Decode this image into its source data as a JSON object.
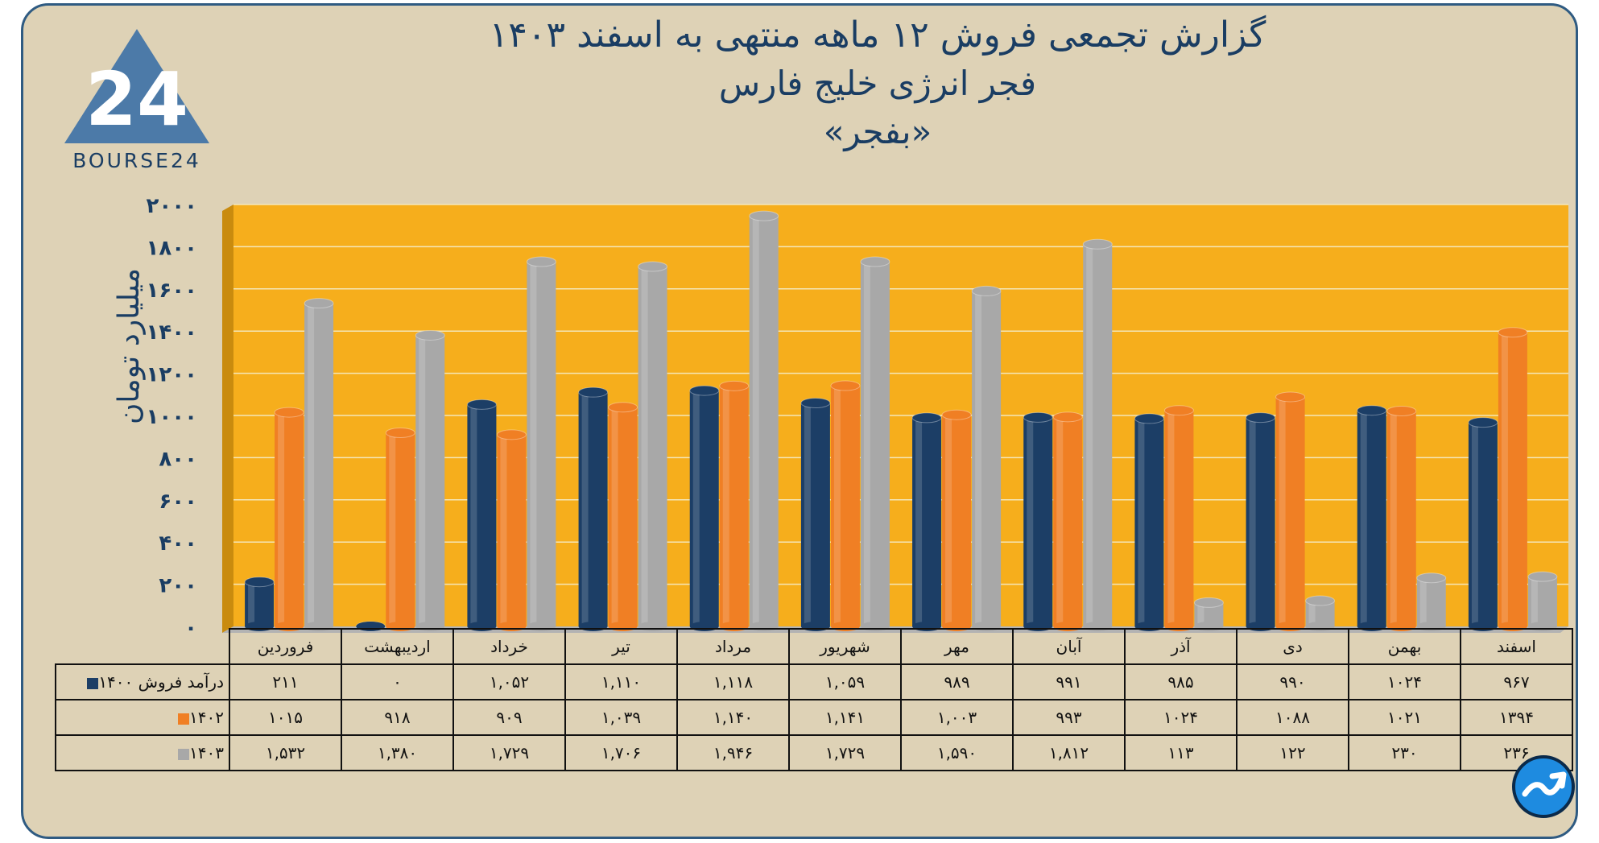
{
  "header": {
    "title_line1": "گزارش تجمعی فروش ۱۲ ماهه منتهی به اسفند ۱۴۰۳",
    "title_line2": "فجر انرژی خلیج فارس",
    "title_line3": "«بفجر»"
  },
  "logo": {
    "text": "BOURSE24",
    "mark": "24"
  },
  "badge": {
    "icon": "trend-up-arrow-icon"
  },
  "colors": {
    "background": "#ded2b6",
    "plot_area": "#f6ae1c",
    "series_1400": "#1c3e66",
    "series_1402": "#f07f24",
    "series_1403": "#a8a8a8",
    "text": "#1a3d63"
  },
  "chart_data": {
    "type": "bar",
    "ylabel": "میلیارد تومان",
    "ylim": [
      0,
      2000
    ],
    "yticks": [
      "۰",
      "۲۰۰",
      "۴۰۰",
      "۶۰۰",
      "۸۰۰",
      "۱۰۰۰",
      "۱۲۰۰",
      "۱۴۰۰",
      "۱۶۰۰",
      "۱۸۰۰",
      "۲۰۰۰"
    ],
    "categories": [
      "فروردین",
      "اردیبهشت",
      "خرداد",
      "تیر",
      "مرداد",
      "شهریور",
      "مهر",
      "آبان",
      "آذر",
      "دی",
      "بهمن",
      "اسفند"
    ],
    "grid": true,
    "series": [
      {
        "name": "درآمد فروش ۱۴۰۰",
        "color": "#1c3e66",
        "values": [
          211,
          0,
          1052,
          1110,
          1118,
          1059,
          989,
          991,
          985,
          990,
          1024,
          967
        ],
        "labels": [
          "۲۱۱",
          "۰",
          "۱,۰۵۲",
          "۱,۱۱۰",
          "۱,۱۱۸",
          "۱,۰۵۹",
          "۹۸۹",
          "۹۹۱",
          "۹۸۵",
          "۹۹۰",
          "۱۰۲۴",
          "۹۶۷"
        ]
      },
      {
        "name": "۱۴۰۲",
        "color": "#f07f24",
        "values": [
          1015,
          918,
          909,
          1039,
          1140,
          1141,
          1003,
          993,
          1024,
          1088,
          1021,
          1394
        ],
        "labels": [
          "۱۰۱۵",
          "۹۱۸",
          "۹۰۹",
          "۱,۰۳۹",
          "۱,۱۴۰",
          "۱,۱۴۱",
          "۱,۰۰۳",
          "۹۹۳",
          "۱۰۲۴",
          "۱۰۸۸",
          "۱۰۲۱",
          "۱۳۹۴"
        ]
      },
      {
        "name": "۱۴۰۳",
        "color": "#a8a8a8",
        "values": [
          1532,
          1380,
          1729,
          1706,
          1946,
          1729,
          1590,
          1812,
          113,
          122,
          230,
          236
        ],
        "labels": [
          "۱,۵۳۲",
          "۱,۳۸۰",
          "۱,۷۲۹",
          "۱,۷۰۶",
          "۱,۹۴۶",
          "۱,۷۲۹",
          "۱,۵۹۰",
          "۱,۸۱۲",
          "۱۱۳",
          "۱۲۲",
          "۲۳۰",
          "۲۳۶"
        ]
      }
    ]
  }
}
